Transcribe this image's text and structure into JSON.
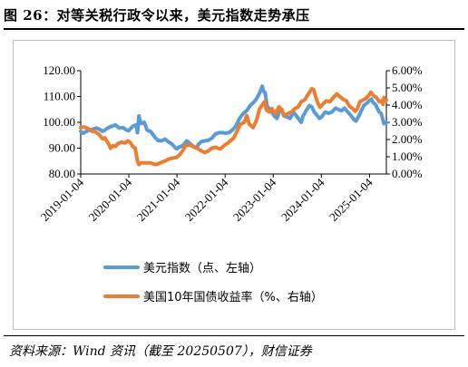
{
  "header": {
    "title": "图 26：对等关税行政令以来，美元指数走势承压"
  },
  "footer": {
    "source": "资料来源：Wind 资讯（截至 20250507），财信证券"
  },
  "chart_data": {
    "type": "line",
    "x_ticks": [
      "2019-01-04",
      "2020-01-04",
      "2021-01-04",
      "2022-01-04",
      "2023-01-04",
      "2024-01-04",
      "2025-01-04"
    ],
    "x_range": [
      2019.0,
      2025.35
    ],
    "y_left": {
      "ticks": [
        "80.00",
        "90.00",
        "100.00",
        "110.00",
        "120.00"
      ],
      "range": [
        80,
        120
      ]
    },
    "y_right": {
      "ticks": [
        "0.00%",
        "1.00%",
        "2.00%",
        "3.00%",
        "4.00%",
        "5.00%",
        "6.00%"
      ],
      "range": [
        0,
        6
      ]
    },
    "grid": false,
    "legend_position": "bottom",
    "series": [
      {
        "name": "美元指数（点、左轴）",
        "axis": "left",
        "color": "#5b9bd5",
        "points": [
          [
            2019.0,
            96.5
          ],
          [
            2019.05,
            95.8
          ],
          [
            2019.1,
            96.3
          ],
          [
            2019.18,
            97.0
          ],
          [
            2019.25,
            97.3
          ],
          [
            2019.33,
            97.8
          ],
          [
            2019.4,
            97.2
          ],
          [
            2019.45,
            96.5
          ],
          [
            2019.5,
            97.0
          ],
          [
            2019.58,
            98.0
          ],
          [
            2019.65,
            98.5
          ],
          [
            2019.72,
            99.0
          ],
          [
            2019.8,
            97.8
          ],
          [
            2019.88,
            98.0
          ],
          [
            2019.95,
            97.0
          ],
          [
            2020.0,
            96.8
          ],
          [
            2020.08,
            98.5
          ],
          [
            2020.15,
            99.0
          ],
          [
            2020.18,
            96.0
          ],
          [
            2020.21,
            102.5
          ],
          [
            2020.25,
            99.5
          ],
          [
            2020.32,
            100.0
          ],
          [
            2020.38,
            97.0
          ],
          [
            2020.45,
            96.5
          ],
          [
            2020.55,
            94.0
          ],
          [
            2020.6,
            93.0
          ],
          [
            2020.68,
            92.8
          ],
          [
            2020.75,
            93.5
          ],
          [
            2020.82,
            92.5
          ],
          [
            2020.9,
            91.5
          ],
          [
            2020.97,
            90.0
          ],
          [
            2021.0,
            89.8
          ],
          [
            2021.05,
            90.5
          ],
          [
            2021.12,
            91.0
          ],
          [
            2021.2,
            92.8
          ],
          [
            2021.26,
            92.0
          ],
          [
            2021.33,
            90.8
          ],
          [
            2021.4,
            90.0
          ],
          [
            2021.45,
            91.5
          ],
          [
            2021.5,
            92.5
          ],
          [
            2021.58,
            92.8
          ],
          [
            2021.65,
            93.0
          ],
          [
            2021.72,
            93.8
          ],
          [
            2021.8,
            95.5
          ],
          [
            2021.88,
            96.0
          ],
          [
            2021.95,
            96.0
          ],
          [
            2022.0,
            95.8
          ],
          [
            2022.08,
            96.0
          ],
          [
            2022.15,
            97.0
          ],
          [
            2022.22,
            98.5
          ],
          [
            2022.3,
            101.5
          ],
          [
            2022.38,
            103.5
          ],
          [
            2022.45,
            104.5
          ],
          [
            2022.52,
            106.5
          ],
          [
            2022.58,
            107.5
          ],
          [
            2022.63,
            108.5
          ],
          [
            2022.68,
            110.0
          ],
          [
            2022.73,
            112.0
          ],
          [
            2022.77,
            114.0
          ],
          [
            2022.8,
            112.0
          ],
          [
            2022.83,
            111.5
          ],
          [
            2022.87,
            106.5
          ],
          [
            2022.92,
            105.0
          ],
          [
            2022.97,
            104.0
          ],
          [
            2023.02,
            102.5
          ],
          [
            2023.08,
            101.5
          ],
          [
            2023.13,
            104.5
          ],
          [
            2023.18,
            105.0
          ],
          [
            2023.22,
            102.5
          ],
          [
            2023.3,
            102.0
          ],
          [
            2023.35,
            101.5
          ],
          [
            2023.42,
            104.0
          ],
          [
            2023.48,
            102.5
          ],
          [
            2023.54,
            101.0
          ],
          [
            2023.58,
            100.0
          ],
          [
            2023.62,
            102.5
          ],
          [
            2023.68,
            104.5
          ],
          [
            2023.75,
            106.5
          ],
          [
            2023.8,
            106.0
          ],
          [
            2023.85,
            104.0
          ],
          [
            2023.9,
            103.0
          ],
          [
            2023.96,
            101.5
          ],
          [
            2024.0,
            102.0
          ],
          [
            2024.08,
            104.0
          ],
          [
            2024.15,
            103.5
          ],
          [
            2024.22,
            104.0
          ],
          [
            2024.3,
            105.5
          ],
          [
            2024.35,
            105.0
          ],
          [
            2024.42,
            104.5
          ],
          [
            2024.48,
            105.5
          ],
          [
            2024.55,
            104.0
          ],
          [
            2024.62,
            102.5
          ],
          [
            2024.68,
            101.0
          ],
          [
            2024.72,
            100.5
          ],
          [
            2024.78,
            102.5
          ],
          [
            2024.83,
            104.5
          ],
          [
            2024.88,
            106.5
          ],
          [
            2024.95,
            107.5
          ],
          [
            2025.0,
            108.5
          ],
          [
            2025.04,
            109.0
          ],
          [
            2025.08,
            107.5
          ],
          [
            2025.12,
            107.0
          ],
          [
            2025.16,
            105.5
          ],
          [
            2025.2,
            104.0
          ],
          [
            2025.24,
            103.5
          ],
          [
            2025.27,
            101.5
          ],
          [
            2025.3,
            99.5
          ],
          [
            2025.33,
            100.0
          ],
          [
            2025.35,
            99.8
          ]
        ]
      },
      {
        "name": "美国10年国债收益率（%、右轴）",
        "axis": "right",
        "color": "#ed7d31",
        "points": [
          [
            2019.0,
            2.7
          ],
          [
            2019.08,
            2.72
          ],
          [
            2019.15,
            2.65
          ],
          [
            2019.22,
            2.5
          ],
          [
            2019.3,
            2.45
          ],
          [
            2019.38,
            2.3
          ],
          [
            2019.45,
            2.05
          ],
          [
            2019.5,
            2.1
          ],
          [
            2019.58,
            1.75
          ],
          [
            2019.62,
            1.5
          ],
          [
            2019.67,
            1.65
          ],
          [
            2019.72,
            1.6
          ],
          [
            2019.78,
            1.78
          ],
          [
            2019.85,
            1.85
          ],
          [
            2019.92,
            1.8
          ],
          [
            2019.98,
            1.92
          ],
          [
            2020.03,
            1.82
          ],
          [
            2020.08,
            1.6
          ],
          [
            2020.13,
            1.5
          ],
          [
            2020.18,
            0.75
          ],
          [
            2020.21,
            0.55
          ],
          [
            2020.25,
            0.65
          ],
          [
            2020.35,
            0.65
          ],
          [
            2020.45,
            0.65
          ],
          [
            2020.55,
            0.55
          ],
          [
            2020.6,
            0.58
          ],
          [
            2020.68,
            0.68
          ],
          [
            2020.75,
            0.75
          ],
          [
            2020.82,
            0.85
          ],
          [
            2020.9,
            0.92
          ],
          [
            2020.98,
            0.95
          ],
          [
            2021.05,
            1.1
          ],
          [
            2021.12,
            1.35
          ],
          [
            2021.18,
            1.65
          ],
          [
            2021.25,
            1.7
          ],
          [
            2021.33,
            1.6
          ],
          [
            2021.42,
            1.5
          ],
          [
            2021.5,
            1.35
          ],
          [
            2021.58,
            1.25
          ],
          [
            2021.66,
            1.35
          ],
          [
            2021.72,
            1.5
          ],
          [
            2021.8,
            1.55
          ],
          [
            2021.9,
            1.45
          ],
          [
            2022.0,
            1.7
          ],
          [
            2022.06,
            1.8
          ],
          [
            2022.12,
            1.95
          ],
          [
            2022.18,
            2.1
          ],
          [
            2022.25,
            2.5
          ],
          [
            2022.32,
            2.9
          ],
          [
            2022.4,
            3.0
          ],
          [
            2022.45,
            3.4
          ],
          [
            2022.5,
            2.9
          ],
          [
            2022.58,
            2.7
          ],
          [
            2022.65,
            3.1
          ],
          [
            2022.72,
            3.8
          ],
          [
            2022.78,
            4.05
          ],
          [
            2022.82,
            4.2
          ],
          [
            2022.86,
            3.7
          ],
          [
            2022.92,
            3.6
          ],
          [
            2022.97,
            3.8
          ],
          [
            2023.05,
            3.5
          ],
          [
            2023.12,
            3.9
          ],
          [
            2023.18,
            3.7
          ],
          [
            2023.22,
            3.4
          ],
          [
            2023.3,
            3.5
          ],
          [
            2023.38,
            3.6
          ],
          [
            2023.45,
            3.8
          ],
          [
            2023.52,
            3.9
          ],
          [
            2023.58,
            4.2
          ],
          [
            2023.65,
            4.3
          ],
          [
            2023.72,
            4.6
          ],
          [
            2023.8,
            4.95
          ],
          [
            2023.84,
            4.9
          ],
          [
            2023.88,
            4.5
          ],
          [
            2023.93,
            4.1
          ],
          [
            2023.97,
            3.88
          ],
          [
            2024.03,
            4.05
          ],
          [
            2024.1,
            4.25
          ],
          [
            2024.18,
            4.2
          ],
          [
            2024.25,
            4.45
          ],
          [
            2024.32,
            4.65
          ],
          [
            2024.38,
            4.5
          ],
          [
            2024.45,
            4.35
          ],
          [
            2024.52,
            4.25
          ],
          [
            2024.58,
            3.95
          ],
          [
            2024.65,
            3.8
          ],
          [
            2024.7,
            3.65
          ],
          [
            2024.75,
            3.8
          ],
          [
            2024.8,
            4.2
          ],
          [
            2024.87,
            4.3
          ],
          [
            2024.93,
            4.4
          ],
          [
            2024.98,
            4.55
          ],
          [
            2025.03,
            4.75
          ],
          [
            2025.08,
            4.55
          ],
          [
            2025.14,
            4.45
          ],
          [
            2025.2,
            4.2
          ],
          [
            2025.25,
            4.25
          ],
          [
            2025.28,
            4.05
          ],
          [
            2025.3,
            4.45
          ],
          [
            2025.33,
            4.25
          ],
          [
            2025.35,
            4.3
          ]
        ]
      }
    ]
  }
}
